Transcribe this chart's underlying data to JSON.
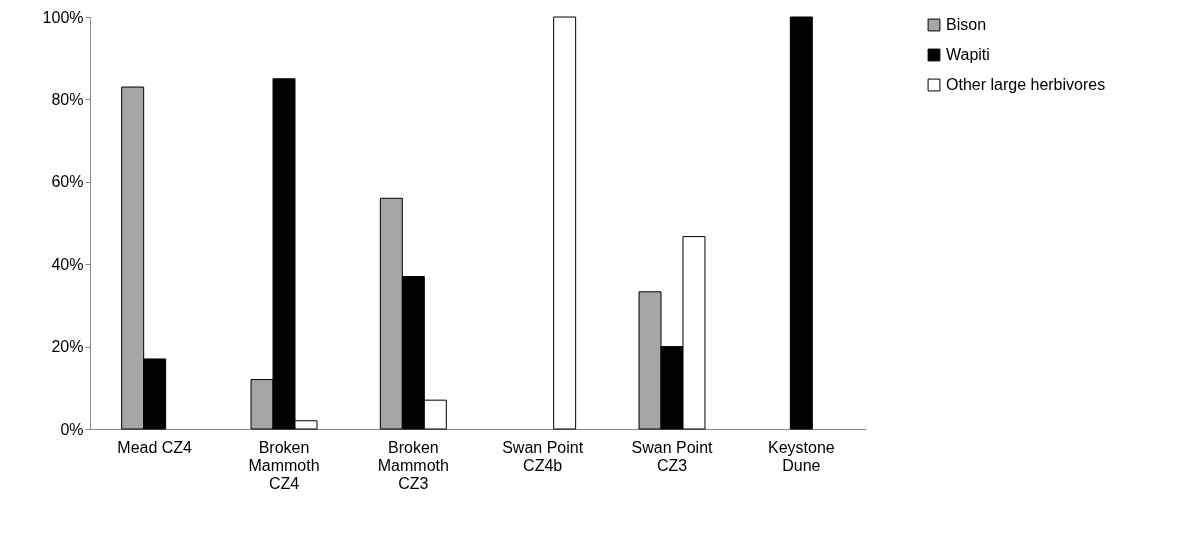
{
  "chart_data": {
    "type": "bar",
    "categories": [
      "Mead CZ4",
      "Broken Mammoth CZ4",
      "Broken Mammoth CZ3",
      "Swan Point CZ4b",
      "Swan Point CZ3",
      "Keystone Dune"
    ],
    "series": [
      {
        "name": "Bison",
        "color": "#a6a6a6",
        "values": [
          83,
          12,
          56,
          0,
          33.3,
          0
        ]
      },
      {
        "name": "Wapiti",
        "color": "#000000",
        "values": [
          17,
          85,
          37,
          0,
          20,
          100
        ]
      },
      {
        "name": "Other large herbivores",
        "color": "#ffffff",
        "values": [
          0,
          2,
          7,
          100,
          46.7,
          0
        ]
      }
    ],
    "ylim": [
      0,
      100
    ],
    "yticks": [
      {
        "value": 0,
        "label": "0%"
      },
      {
        "value": 20,
        "label": "20%"
      },
      {
        "value": 40,
        "label": "40%"
      },
      {
        "value": 60,
        "label": "60%"
      },
      {
        "value": 80,
        "label": "80%"
      },
      {
        "value": 100,
        "label": "100%"
      }
    ],
    "grid": false,
    "legend": "right"
  }
}
